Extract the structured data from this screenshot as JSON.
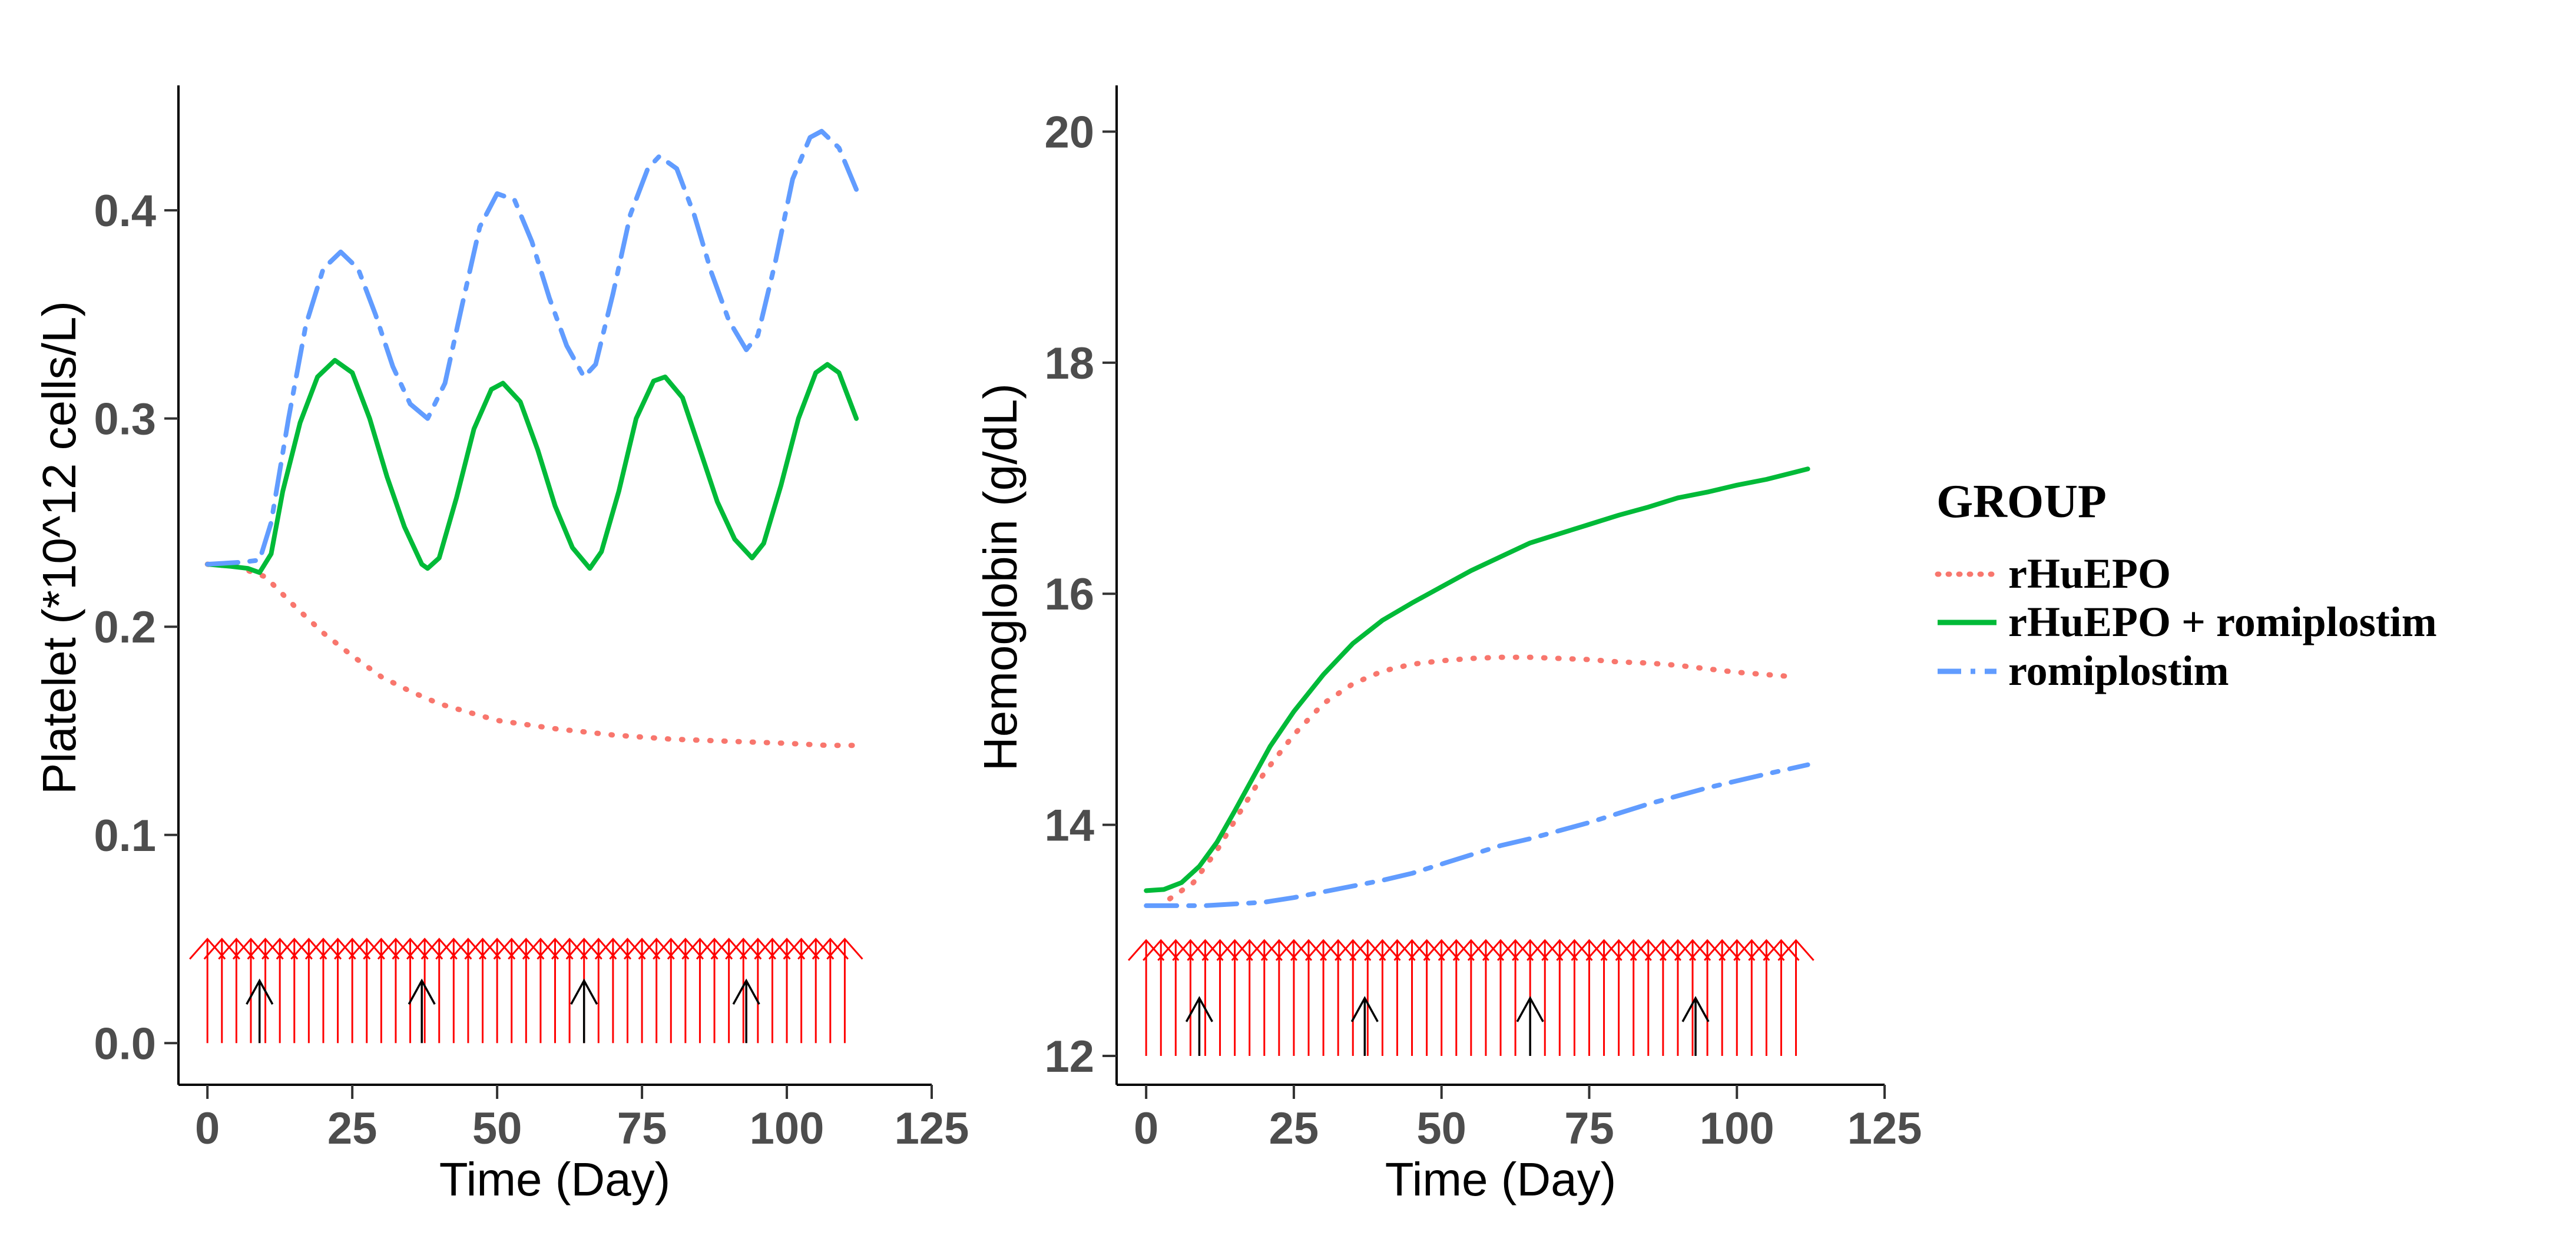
{
  "chart_data": [
    {
      "type": "line",
      "panel": "left",
      "xlabel": "Time (Day)",
      "ylabel": "Platelet (*10^12 cells/L)",
      "xlim": [
        -5,
        125
      ],
      "ylim": [
        -0.02,
        0.46
      ],
      "xticks": [
        "0",
        "25",
        "50",
        "75",
        "100",
        "125"
      ],
      "yticks": [
        "0.0",
        "0.1",
        "0.2",
        "0.3",
        "0.4"
      ],
      "series": [
        {
          "name": "rHuEPO",
          "color": "#F8766D",
          "dash": "dotted",
          "points": [
            [
              0,
              0.23
            ],
            [
              5,
              0.229
            ],
            [
              10,
              0.224
            ],
            [
              15,
              0.21
            ],
            [
              20,
              0.197
            ],
            [
              25,
              0.186
            ],
            [
              30,
              0.176
            ],
            [
              35,
              0.169
            ],
            [
              40,
              0.163
            ],
            [
              45,
              0.159
            ],
            [
              50,
              0.155
            ],
            [
              60,
              0.151
            ],
            [
              70,
              0.148
            ],
            [
              80,
              0.146
            ],
            [
              90,
              0.145
            ],
            [
              100,
              0.144
            ],
            [
              107,
              0.143
            ],
            [
              112,
              0.143
            ]
          ]
        },
        {
          "name": "rHuEPO + romiplostim",
          "color": "#00BA38",
          "dash": "solid",
          "points": [
            [
              0,
              0.23
            ],
            [
              4,
              0.229
            ],
            [
              7,
              0.228
            ],
            [
              9,
              0.226
            ],
            [
              11,
              0.235
            ],
            [
              13,
              0.265
            ],
            [
              16,
              0.298
            ],
            [
              19,
              0.32
            ],
            [
              22,
              0.328
            ],
            [
              25,
              0.322
            ],
            [
              28,
              0.3
            ],
            [
              31,
              0.272
            ],
            [
              34,
              0.248
            ],
            [
              37,
              0.23
            ],
            [
              38,
              0.228
            ],
            [
              40,
              0.233
            ],
            [
              43,
              0.262
            ],
            [
              46,
              0.295
            ],
            [
              49,
              0.314
            ],
            [
              51,
              0.317
            ],
            [
              54,
              0.308
            ],
            [
              57,
              0.285
            ],
            [
              60,
              0.258
            ],
            [
              63,
              0.238
            ],
            [
              66,
              0.228
            ],
            [
              68,
              0.236
            ],
            [
              71,
              0.265
            ],
            [
              74,
              0.3
            ],
            [
              77,
              0.318
            ],
            [
              79,
              0.32
            ],
            [
              82,
              0.31
            ],
            [
              85,
              0.285
            ],
            [
              88,
              0.26
            ],
            [
              91,
              0.242
            ],
            [
              94,
              0.233
            ],
            [
              96,
              0.24
            ],
            [
              99,
              0.268
            ],
            [
              102,
              0.3
            ],
            [
              105,
              0.322
            ],
            [
              107,
              0.326
            ],
            [
              109,
              0.322
            ],
            [
              112,
              0.3
            ]
          ]
        },
        {
          "name": "romiplostim",
          "color": "#619CFF",
          "dash": "dashdot",
          "points": [
            [
              0,
              0.23
            ],
            [
              6,
              0.231
            ],
            [
              9,
              0.232
            ],
            [
              11,
              0.25
            ],
            [
              14,
              0.3
            ],
            [
              17,
              0.345
            ],
            [
              20,
              0.372
            ],
            [
              23,
              0.38
            ],
            [
              26,
              0.372
            ],
            [
              29,
              0.35
            ],
            [
              32,
              0.325
            ],
            [
              35,
              0.307
            ],
            [
              38,
              0.3
            ],
            [
              41,
              0.317
            ],
            [
              44,
              0.355
            ],
            [
              47,
              0.392
            ],
            [
              50,
              0.408
            ],
            [
              53,
              0.405
            ],
            [
              56,
              0.385
            ],
            [
              59,
              0.358
            ],
            [
              62,
              0.335
            ],
            [
              65,
              0.32
            ],
            [
              67,
              0.326
            ],
            [
              70,
              0.36
            ],
            [
              73,
              0.398
            ],
            [
              76,
              0.42
            ],
            [
              78,
              0.426
            ],
            [
              81,
              0.42
            ],
            [
              84,
              0.398
            ],
            [
              87,
              0.37
            ],
            [
              90,
              0.347
            ],
            [
              93,
              0.333
            ],
            [
              95,
              0.34
            ],
            [
              98,
              0.375
            ],
            [
              101,
              0.415
            ],
            [
              104,
              0.435
            ],
            [
              106,
              0.438
            ],
            [
              109,
              0.43
            ],
            [
              112,
              0.41
            ]
          ]
        }
      ],
      "dosing": {
        "rhuepo_start": 0,
        "rhuepo_interval": 2.5,
        "rhuepo_count": 45,
        "rhuepo_arrow_top": 0.05,
        "rhuepo_color": "#FF0000",
        "romiplostim_days": [
          9,
          37,
          65,
          93
        ],
        "romiplostim_arrow_top": 0.03,
        "romiplostim_color": "#000000"
      }
    },
    {
      "type": "line",
      "panel": "right",
      "xlabel": "Time (Day)",
      "ylabel": "Hemoglobin (g/dL)",
      "xlim": [
        -5,
        125
      ],
      "ylim": [
        11.75,
        20.4
      ],
      "xticks": [
        "0",
        "25",
        "50",
        "75",
        "100",
        "125"
      ],
      "yticks": [
        "12",
        "14",
        "16",
        "18",
        "20"
      ],
      "series": [
        {
          "name": "rHuEPO",
          "color": "#F8766D",
          "dash": "dotted",
          "points": [
            [
              4,
              13.36
            ],
            [
              8,
              13.5
            ],
            [
              12,
              13.78
            ],
            [
              16,
              14.12
            ],
            [
              20,
              14.45
            ],
            [
              25,
              14.78
            ],
            [
              30,
              15.05
            ],
            [
              35,
              15.22
            ],
            [
              40,
              15.33
            ],
            [
              45,
              15.39
            ],
            [
              50,
              15.42
            ],
            [
              55,
              15.44
            ],
            [
              60,
              15.45
            ],
            [
              65,
              15.45
            ],
            [
              70,
              15.44
            ],
            [
              75,
              15.43
            ],
            [
              80,
              15.41
            ],
            [
              85,
              15.4
            ],
            [
              90,
              15.38
            ],
            [
              95,
              15.35
            ],
            [
              100,
              15.32
            ],
            [
              105,
              15.3
            ],
            [
              110,
              15.28
            ]
          ]
        },
        {
          "name": "rHuEPO + romiplostim",
          "color": "#00BA38",
          "dash": "solid",
          "points": [
            [
              0,
              13.43
            ],
            [
              3,
              13.44
            ],
            [
              6,
              13.5
            ],
            [
              9,
              13.64
            ],
            [
              12,
              13.85
            ],
            [
              15,
              14.12
            ],
            [
              18,
              14.4
            ],
            [
              21,
              14.68
            ],
            [
              25,
              14.98
            ],
            [
              30,
              15.3
            ],
            [
              35,
              15.57
            ],
            [
              40,
              15.77
            ],
            [
              45,
              15.92
            ],
            [
              50,
              16.06
            ],
            [
              55,
              16.2
            ],
            [
              60,
              16.32
            ],
            [
              65,
              16.44
            ],
            [
              70,
              16.52
            ],
            [
              75,
              16.6
            ],
            [
              80,
              16.68
            ],
            [
              85,
              16.75
            ],
            [
              90,
              16.83
            ],
            [
              95,
              16.88
            ],
            [
              100,
              16.94
            ],
            [
              105,
              16.99
            ],
            [
              112,
              17.08
            ]
          ]
        },
        {
          "name": "romiplostim",
          "color": "#619CFF",
          "dash": "dashdot",
          "points": [
            [
              0,
              13.3
            ],
            [
              10,
              13.3
            ],
            [
              20,
              13.33
            ],
            [
              25,
              13.37
            ],
            [
              30,
              13.42
            ],
            [
              35,
              13.47
            ],
            [
              40,
              13.52
            ],
            [
              45,
              13.58
            ],
            [
              50,
              13.66
            ],
            [
              55,
              13.74
            ],
            [
              60,
              13.82
            ],
            [
              65,
              13.88
            ],
            [
              70,
              13.95
            ],
            [
              75,
              14.02
            ],
            [
              80,
              14.1
            ],
            [
              85,
              14.18
            ],
            [
              90,
              14.25
            ],
            [
              95,
              14.32
            ],
            [
              100,
              14.38
            ],
            [
              105,
              14.44
            ],
            [
              112,
              14.52
            ]
          ]
        }
      ],
      "dosing": {
        "rhuepo_start": 0,
        "rhuepo_interval": 2.5,
        "rhuepo_count": 45,
        "rhuepo_arrow_top": 13.0,
        "rhuepo_color": "#FF0000",
        "romiplostim_days": [
          9,
          37,
          65,
          93
        ],
        "romiplostim_arrow_top": 12.5,
        "romiplostim_color": "#000000"
      }
    }
  ],
  "legend": {
    "title": "GROUP",
    "entries": [
      {
        "label": "rHuEPO",
        "color": "#F8766D",
        "dash": "dotted"
      },
      {
        "label": "rHuEPO + romiplostim",
        "color": "#00BA38",
        "dash": "solid"
      },
      {
        "label": "romiplostim",
        "color": "#619CFF",
        "dash": "dashdot"
      }
    ]
  }
}
